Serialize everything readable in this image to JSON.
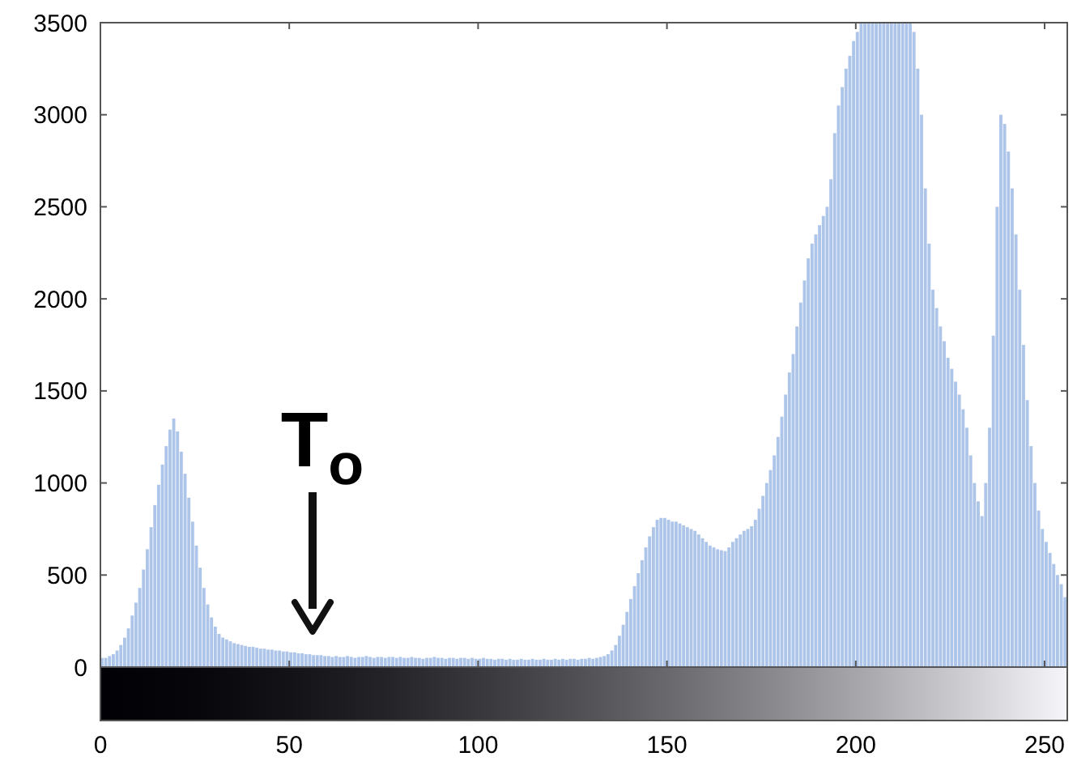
{
  "chart_data": {
    "type": "histogram",
    "color": "#aec5ea",
    "bins": [
      0,
      1,
      2,
      3,
      4,
      5,
      6,
      7,
      8,
      9,
      10,
      11,
      12,
      13,
      14,
      15,
      16,
      17,
      18,
      19,
      20,
      21,
      22,
      23,
      24,
      25,
      26,
      27,
      28,
      29,
      30,
      31,
      32,
      33,
      34,
      35,
      36,
      37,
      38,
      39,
      40,
      41,
      42,
      43,
      44,
      45,
      46,
      47,
      48,
      49,
      50,
      51,
      52,
      53,
      54,
      55,
      56,
      57,
      58,
      59,
      60,
      61,
      62,
      63,
      64,
      65,
      66,
      67,
      68,
      69,
      70,
      71,
      72,
      73,
      74,
      75,
      76,
      77,
      78,
      79,
      80,
      81,
      82,
      83,
      84,
      85,
      86,
      87,
      88,
      89,
      90,
      91,
      92,
      93,
      94,
      95,
      96,
      97,
      98,
      99,
      100,
      101,
      102,
      103,
      104,
      105,
      106,
      107,
      108,
      109,
      110,
      111,
      112,
      113,
      114,
      115,
      116,
      117,
      118,
      119,
      120,
      121,
      122,
      123,
      124,
      125,
      126,
      127,
      128,
      129,
      130,
      131,
      132,
      133,
      134,
      135,
      136,
      137,
      138,
      139,
      140,
      141,
      142,
      143,
      144,
      145,
      146,
      147,
      148,
      149,
      150,
      151,
      152,
      153,
      154,
      155,
      156,
      157,
      158,
      159,
      160,
      161,
      162,
      163,
      164,
      165,
      166,
      167,
      168,
      169,
      170,
      171,
      172,
      173,
      174,
      175,
      176,
      177,
      178,
      179,
      180,
      181,
      182,
      183,
      184,
      185,
      186,
      187,
      188,
      189,
      190,
      191,
      192,
      193,
      194,
      195,
      196,
      197,
      198,
      199,
      200,
      201,
      202,
      203,
      204,
      205,
      206,
      207,
      208,
      209,
      210,
      211,
      212,
      213,
      214,
      215,
      216,
      217,
      218,
      219,
      220,
      221,
      222,
      223,
      224,
      225,
      226,
      227,
      228,
      229,
      230,
      231,
      232,
      233,
      234,
      235,
      236,
      237,
      238,
      239,
      240,
      241,
      242,
      243,
      244,
      245,
      246,
      247,
      248,
      249,
      250,
      251,
      252,
      253,
      254,
      255,
      256
    ],
    "values": [
      50,
      50,
      60,
      70,
      90,
      120,
      160,
      210,
      280,
      350,
      430,
      530,
      640,
      760,
      880,
      990,
      1100,
      1200,
      1290,
      1350,
      1280,
      1170,
      1050,
      920,
      790,
      660,
      540,
      430,
      340,
      270,
      220,
      180,
      160,
      150,
      140,
      130,
      125,
      120,
      115,
      110,
      110,
      105,
      100,
      100,
      95,
      95,
      90,
      90,
      85,
      85,
      80,
      80,
      75,
      75,
      70,
      70,
      65,
      65,
      65,
      60,
      60,
      55,
      60,
      55,
      55,
      60,
      55,
      50,
      55,
      55,
      60,
      55,
      50,
      55,
      55,
      50,
      55,
      55,
      50,
      55,
      50,
      50,
      55,
      50,
      50,
      45,
      50,
      50,
      55,
      50,
      50,
      45,
      50,
      50,
      45,
      50,
      50,
      45,
      50,
      45,
      45,
      50,
      45,
      45,
      40,
      45,
      45,
      40,
      45,
      40,
      40,
      45,
      40,
      40,
      45,
      40,
      40,
      45,
      40,
      40,
      45,
      40,
      45,
      40,
      45,
      45,
      40,
      45,
      45,
      50,
      45,
      50,
      55,
      60,
      70,
      90,
      120,
      170,
      230,
      300,
      370,
      440,
      510,
      580,
      650,
      710,
      760,
      800,
      810,
      810,
      800,
      790,
      790,
      780,
      770,
      760,
      750,
      740,
      720,
      700,
      680,
      660,
      650,
      640,
      635,
      630,
      650,
      680,
      700,
      720,
      740,
      750,
      765,
      800,
      860,
      930,
      1000,
      1070,
      1150,
      1250,
      1360,
      1480,
      1600,
      1700,
      1850,
      1980,
      2100,
      2220,
      2300,
      2350,
      2400,
      2450,
      2500,
      2650,
      2900,
      3050,
      3150,
      3250,
      3320,
      3400,
      3450,
      3500,
      3500,
      3500,
      3500,
      3500,
      3500,
      3500,
      3500,
      3500,
      3500,
      3500,
      3500,
      3500,
      3500,
      3450,
      3250,
      3000,
      2600,
      2300,
      2050,
      1950,
      1850,
      1770,
      1680,
      1620,
      1550,
      1480,
      1400,
      1300,
      1150,
      1000,
      900,
      820,
      1000,
      1300,
      1800,
      2500,
      3000,
      2950,
      2800,
      2600,
      2350,
      2050,
      1750,
      1450,
      1200,
      1000,
      850,
      750,
      680,
      620,
      560,
      500,
      450,
      380
    ],
    "xlim": [
      0,
      256
    ],
    "xticks": [
      0,
      50,
      100,
      150,
      200,
      250
    ],
    "ylim": [
      0,
      3500
    ],
    "yticks": [
      0,
      500,
      1000,
      1500,
      2000,
      2500,
      3000,
      3500
    ],
    "annotations": [
      "T$_{o}$"
    ]
  }
}
